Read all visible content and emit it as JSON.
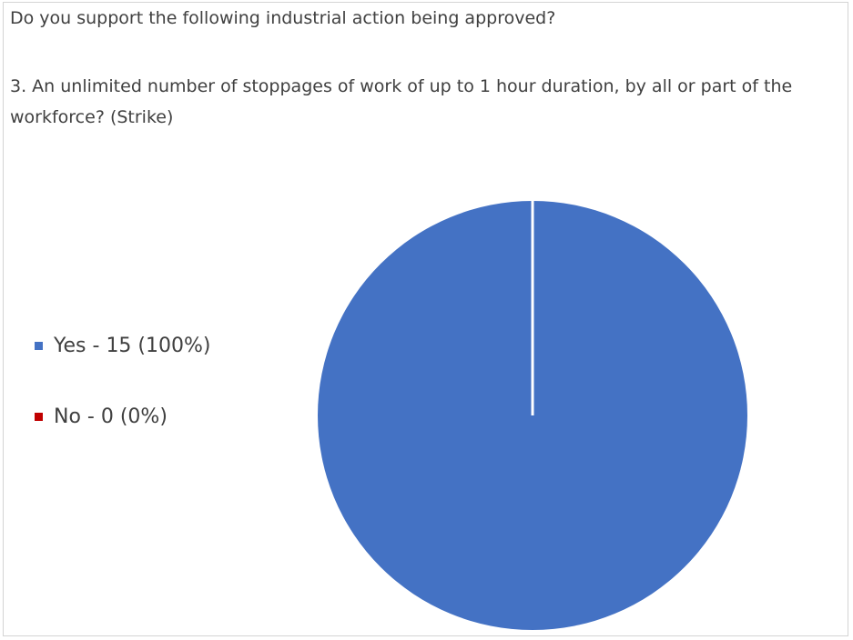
{
  "chart_data": {
    "type": "pie",
    "title": "Do you support the following industrial action being approved?",
    "subtitle": "3. An unlimited number of stoppages of work of up to 1 hour duration, by all or part of the workforce? (Strike)",
    "categories": [
      "Yes",
      "No"
    ],
    "values": [
      15,
      0
    ],
    "percentages": [
      100,
      0
    ],
    "legend": {
      "placement": "left",
      "entries": [
        {
          "label": "Yes - 15 (100%)",
          "color": "#4472c4"
        },
        {
          "label": "No - 0 (0%)",
          "color": "#c00000"
        }
      ]
    },
    "colors": [
      "#4472c4",
      "#c00000"
    ]
  }
}
